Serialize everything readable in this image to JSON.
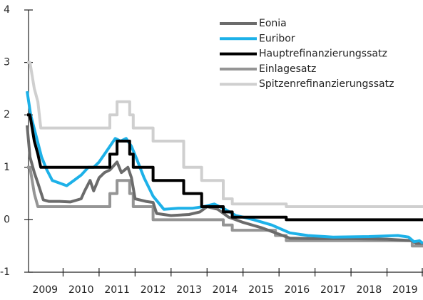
{
  "chart_data": {
    "type": "line",
    "xlim": [
      2009,
      2020
    ],
    "xticks": [
      2009,
      2010,
      2011,
      2012,
      2013,
      2014,
      2015,
      2016,
      2017,
      2018,
      2019
    ],
    "ylim": [
      -1,
      4
    ],
    "yticks": [
      -1,
      0,
      1,
      2,
      3,
      4
    ],
    "legend": "top-right",
    "series": [
      {
        "name": "Eonia",
        "color": "#6b6b6b",
        "x": [
          2009,
          2009.08,
          2009.2,
          2009.3,
          2009.45,
          2009.6,
          2009.9,
          2010.2,
          2010.5,
          2010.6,
          2010.75,
          2010.85,
          2011.0,
          2011.15,
          2011.3,
          2011.5,
          2011.62,
          2011.8,
          2011.9,
          2012.0,
          2012.3,
          2012.5,
          2012.6,
          2013.0,
          2013.5,
          2013.8,
          2014.0,
          2014.3,
          2014.6,
          2014.8,
          2015.0,
          2015.5,
          2015.9,
          2016.3,
          2017.0,
          2018.0,
          2019.0,
          2019.7,
          2019.8,
          2020
        ],
        "values": [
          1.8,
          1.2,
          0.9,
          0.7,
          0.38,
          0.35,
          0.35,
          0.34,
          0.4,
          0.55,
          0.75,
          0.55,
          0.8,
          0.9,
          0.95,
          1.1,
          0.9,
          1.0,
          0.8,
          0.4,
          0.35,
          0.33,
          0.12,
          0.08,
          0.1,
          0.15,
          0.25,
          0.2,
          0.05,
          0.0,
          -0.05,
          -0.15,
          -0.25,
          -0.35,
          -0.36,
          -0.36,
          -0.37,
          -0.4,
          -0.45,
          -0.45
        ]
      },
      {
        "name": "Euribor",
        "color": "#1db1e8",
        "x": [
          2009,
          2009.1,
          2009.25,
          2009.4,
          2009.55,
          2009.7,
          2009.9,
          2010.1,
          2010.3,
          2010.5,
          2010.7,
          2010.85,
          2011.0,
          2011.2,
          2011.45,
          2011.6,
          2011.75,
          2011.9,
          2012.05,
          2012.25,
          2012.5,
          2012.8,
          2013.2,
          2013.6,
          2013.9,
          2014.2,
          2014.5,
          2014.8,
          2015.0,
          2015.3,
          2015.8,
          2016.3,
          2016.8,
          2017.5,
          2018.5,
          2019.3,
          2019.6,
          2019.75,
          2019.9,
          2020
        ],
        "values": [
          2.45,
          2.0,
          1.6,
          1.2,
          0.95,
          0.75,
          0.7,
          0.65,
          0.75,
          0.85,
          1.0,
          1.0,
          1.1,
          1.3,
          1.55,
          1.5,
          1.55,
          1.4,
          1.15,
          0.8,
          0.45,
          0.2,
          0.22,
          0.22,
          0.25,
          0.3,
          0.2,
          0.08,
          0.05,
          0.0,
          -0.1,
          -0.25,
          -0.3,
          -0.33,
          -0.32,
          -0.3,
          -0.33,
          -0.42,
          -0.4,
          -0.45
        ]
      },
      {
        "name": "Hauptrefinanzierungssatz",
        "color": "#000000",
        "x": [
          2009,
          2009.08,
          2009.2,
          2009.3,
          2009.38,
          2011.3,
          2011.3,
          2011.5,
          2011.5,
          2011.85,
          2011.85,
          2011.95,
          2011.95,
          2012.5,
          2012.5,
          2013.35,
          2013.35,
          2013.85,
          2013.85,
          2014.45,
          2014.45,
          2014.7,
          2014.7,
          2016.2,
          2016.2,
          2020
        ],
        "values": [
          2.0,
          2.0,
          1.5,
          1.25,
          1.0,
          1.0,
          1.25,
          1.25,
          1.5,
          1.5,
          1.25,
          1.25,
          1.0,
          1.0,
          0.75,
          0.75,
          0.5,
          0.5,
          0.25,
          0.25,
          0.15,
          0.15,
          0.05,
          0.05,
          0.0,
          0.0
        ]
      },
      {
        "name": "Einlagesatz",
        "color": "#959595",
        "x": [
          2009,
          2009.08,
          2009.2,
          2009.3,
          2011.3,
          2011.3,
          2011.5,
          2011.5,
          2011.85,
          2011.85,
          2011.95,
          2011.95,
          2012.5,
          2012.5,
          2014.45,
          2014.45,
          2014.7,
          2014.7,
          2015.9,
          2015.9,
          2016.2,
          2016.2,
          2019.7,
          2019.7,
          2020
        ],
        "values": [
          1.0,
          1.0,
          0.5,
          0.25,
          0.25,
          0.5,
          0.5,
          0.75,
          0.75,
          0.5,
          0.5,
          0.25,
          0.25,
          0.0,
          0.0,
          -0.1,
          -0.1,
          -0.2,
          -0.2,
          -0.3,
          -0.3,
          -0.4,
          -0.4,
          -0.5,
          -0.5
        ]
      },
      {
        "name": "Spitzenrefinanzierungssatz",
        "color": "#cfcfcf",
        "x": [
          2009,
          2009.08,
          2009.2,
          2009.3,
          2009.38,
          2011.3,
          2011.3,
          2011.5,
          2011.5,
          2011.85,
          2011.85,
          2011.95,
          2011.95,
          2012.5,
          2012.5,
          2013.35,
          2013.35,
          2013.85,
          2013.85,
          2014.45,
          2014.45,
          2014.7,
          2014.7,
          2016.2,
          2016.2,
          2020
        ],
        "values": [
          3.0,
          3.0,
          2.5,
          2.25,
          1.75,
          1.75,
          2.0,
          2.0,
          2.25,
          2.25,
          2.0,
          2.0,
          1.75,
          1.75,
          1.5,
          1.5,
          1.0,
          1.0,
          0.75,
          0.75,
          0.4,
          0.4,
          0.3,
          0.3,
          0.25,
          0.25
        ]
      }
    ]
  }
}
